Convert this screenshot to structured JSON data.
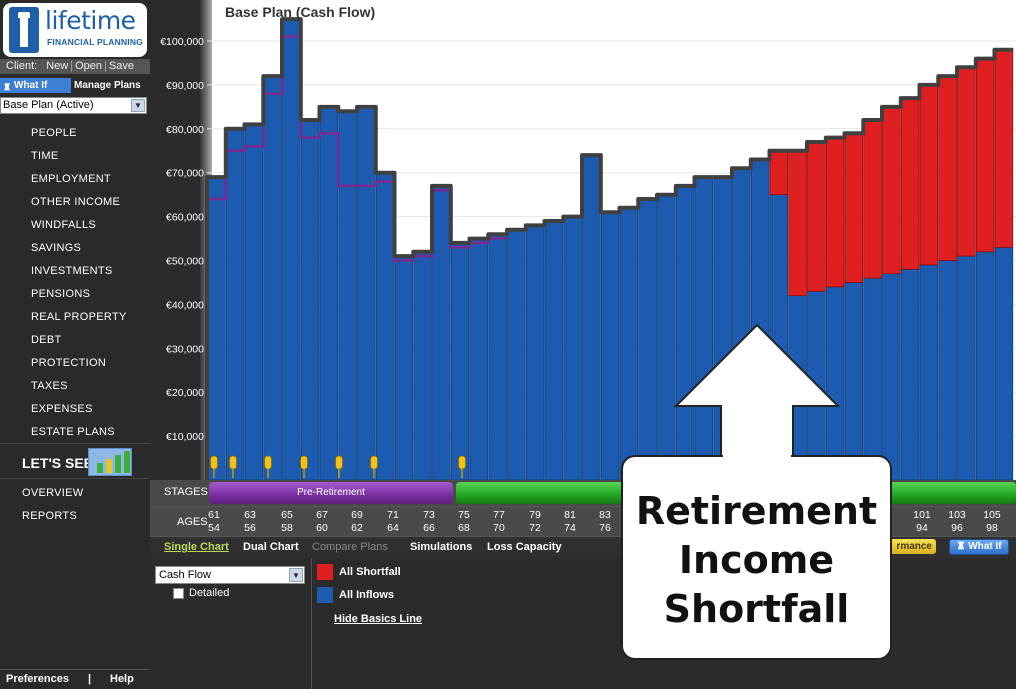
{
  "brand": {
    "name": "lifetime",
    "subtitle": "FINANCIAL PLANNING"
  },
  "client_bar": {
    "label": "Client:",
    "new": "New",
    "open": "Open",
    "save": "Save"
  },
  "tabs": {
    "whatif": "What If",
    "manage": "Manage Plans"
  },
  "plan_select": {
    "value": "Base Plan (Active)"
  },
  "nav": [
    "PEOPLE",
    "TIME",
    "EMPLOYMENT",
    "OTHER INCOME",
    "WINDFALLS",
    "SAVINGS",
    "INVESTMENTS",
    "PENSIONS",
    "REAL PROPERTY",
    "DEBT",
    "PROTECTION",
    "TAXES",
    "EXPENSES",
    "ESTATE PLANS"
  ],
  "lets_see": "LET'S SEE",
  "sub_nav": [
    "OVERVIEW",
    "REPORTS"
  ],
  "footer": {
    "preferences": "Preferences",
    "sep": "|",
    "help": "Help"
  },
  "chart_title": "Base Plan  (Cash Flow)",
  "stages": {
    "label": "STAGES",
    "pre_retirement": "Pre-Retirement"
  },
  "ages_label": "AGES",
  "age_labels": [
    {
      "top": "61",
      "bot": "54"
    },
    {
      "top": "63",
      "bot": "56"
    },
    {
      "top": "65",
      "bot": "58"
    },
    {
      "top": "67",
      "bot": "60"
    },
    {
      "top": "69",
      "bot": "62"
    },
    {
      "top": "71",
      "bot": "64"
    },
    {
      "top": "73",
      "bot": "66"
    },
    {
      "top": "75",
      "bot": "68"
    },
    {
      "top": "77",
      "bot": "70"
    },
    {
      "top": "79",
      "bot": "72"
    },
    {
      "top": "81",
      "bot": "74"
    },
    {
      "top": "83",
      "bot": "76"
    },
    {
      "top": "101",
      "bot": "94"
    },
    {
      "top": "103",
      "bot": "96"
    },
    {
      "top": "105",
      "bot": "98"
    }
  ],
  "tools": {
    "single": "Single Chart",
    "dual": "Dual Chart",
    "compare": "Compare Plans",
    "simulations": "Simulations",
    "loss": "Loss Capacity",
    "performance": "rmance",
    "whatif": "What If"
  },
  "options": {
    "chart_type": "Cash Flow",
    "detailed": "Detailed"
  },
  "legend": {
    "shortfall": "All Shortfall",
    "inflows": "All Inflows",
    "hide_basics": "Hide Basics Line",
    "shortfall_color": "#e02020",
    "inflows_color": "#1c5bb0"
  },
  "callout": {
    "line1": "Retirement",
    "line2": "Income",
    "line3": "Shortfall"
  },
  "chart_data": {
    "type": "bar",
    "ylim": [
      0,
      105000
    ],
    "y_ticks": [
      "€10,000",
      "€20,000",
      "€30,000",
      "€40,000",
      "€50,000",
      "€60,000",
      "€70,000",
      "€80,000",
      "€90,000",
      "€100,000"
    ],
    "series": [
      {
        "name": "All Inflows",
        "values": [
          69000,
          80000,
          81000,
          92000,
          105000,
          82000,
          85000,
          84000,
          85000,
          70000,
          51000,
          52000,
          67000,
          54000,
          55000,
          56000,
          57000,
          58000,
          59000,
          60000,
          74000,
          61000,
          62000,
          64000,
          65000,
          67000,
          69000,
          69000,
          71000,
          73000,
          65000,
          42000,
          43000,
          44000,
          45000,
          46000,
          47000,
          48000,
          49000,
          50000,
          51000,
          52000,
          53000
        ]
      },
      {
        "name": "All Shortfall",
        "values": [
          0,
          0,
          0,
          0,
          0,
          0,
          0,
          0,
          0,
          0,
          0,
          0,
          0,
          0,
          0,
          0,
          0,
          0,
          0,
          0,
          0,
          0,
          0,
          0,
          0,
          0,
          0,
          0,
          0,
          0,
          10000,
          33000,
          34000,
          34000,
          34000,
          36000,
          38000,
          39000,
          41000,
          42000,
          43000,
          44000,
          45000
        ]
      }
    ],
    "basics_line": [
      64000,
      75000,
      76000,
      88000,
      101000,
      78000,
      79000,
      67000,
      67000,
      68000,
      50000,
      51000,
      66000,
      53000,
      54000,
      55000,
      56000,
      57000,
      57000,
      58000,
      73000,
      60000,
      61000,
      62000,
      63000,
      65000,
      66000,
      67000,
      69000,
      71000,
      73000,
      74000,
      75000,
      76000,
      77000,
      78000,
      79000,
      80000,
      82000,
      83000,
      85000,
      87000,
      88000
    ],
    "colors": {
      "inflows": "#1c5bb0",
      "shortfall": "#e02020",
      "basics": "#7a2a8f",
      "outline": "#404040"
    }
  }
}
